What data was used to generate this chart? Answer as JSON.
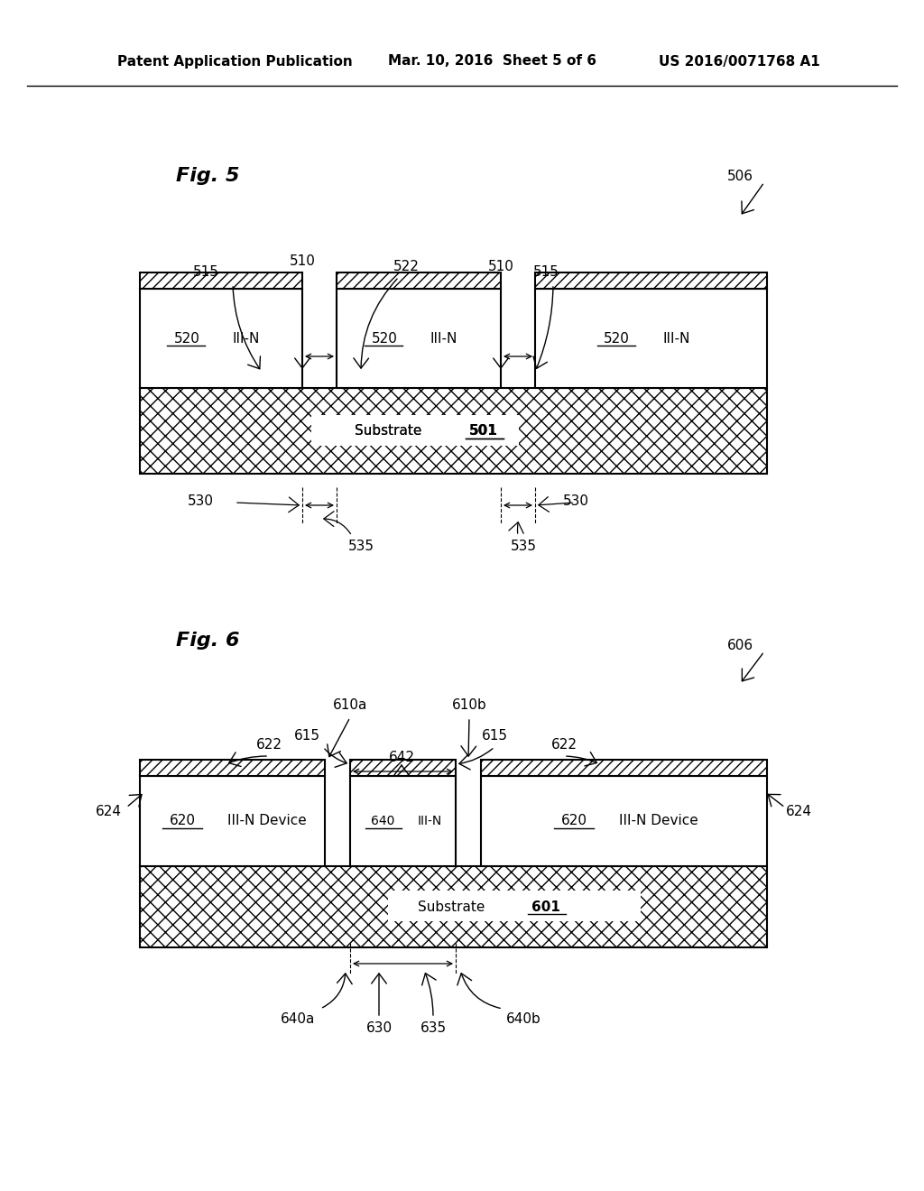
{
  "bg_color": "#ffffff",
  "header_left": "Patent Application Publication",
  "header_mid": "Mar. 10, 2016  Sheet 5 of 6",
  "header_right": "US 2016/0071768 A1",
  "fig5_label": "Fig. 5",
  "fig6_label": "Fig. 6",
  "fig5_ref": "506",
  "fig6_ref": "606"
}
